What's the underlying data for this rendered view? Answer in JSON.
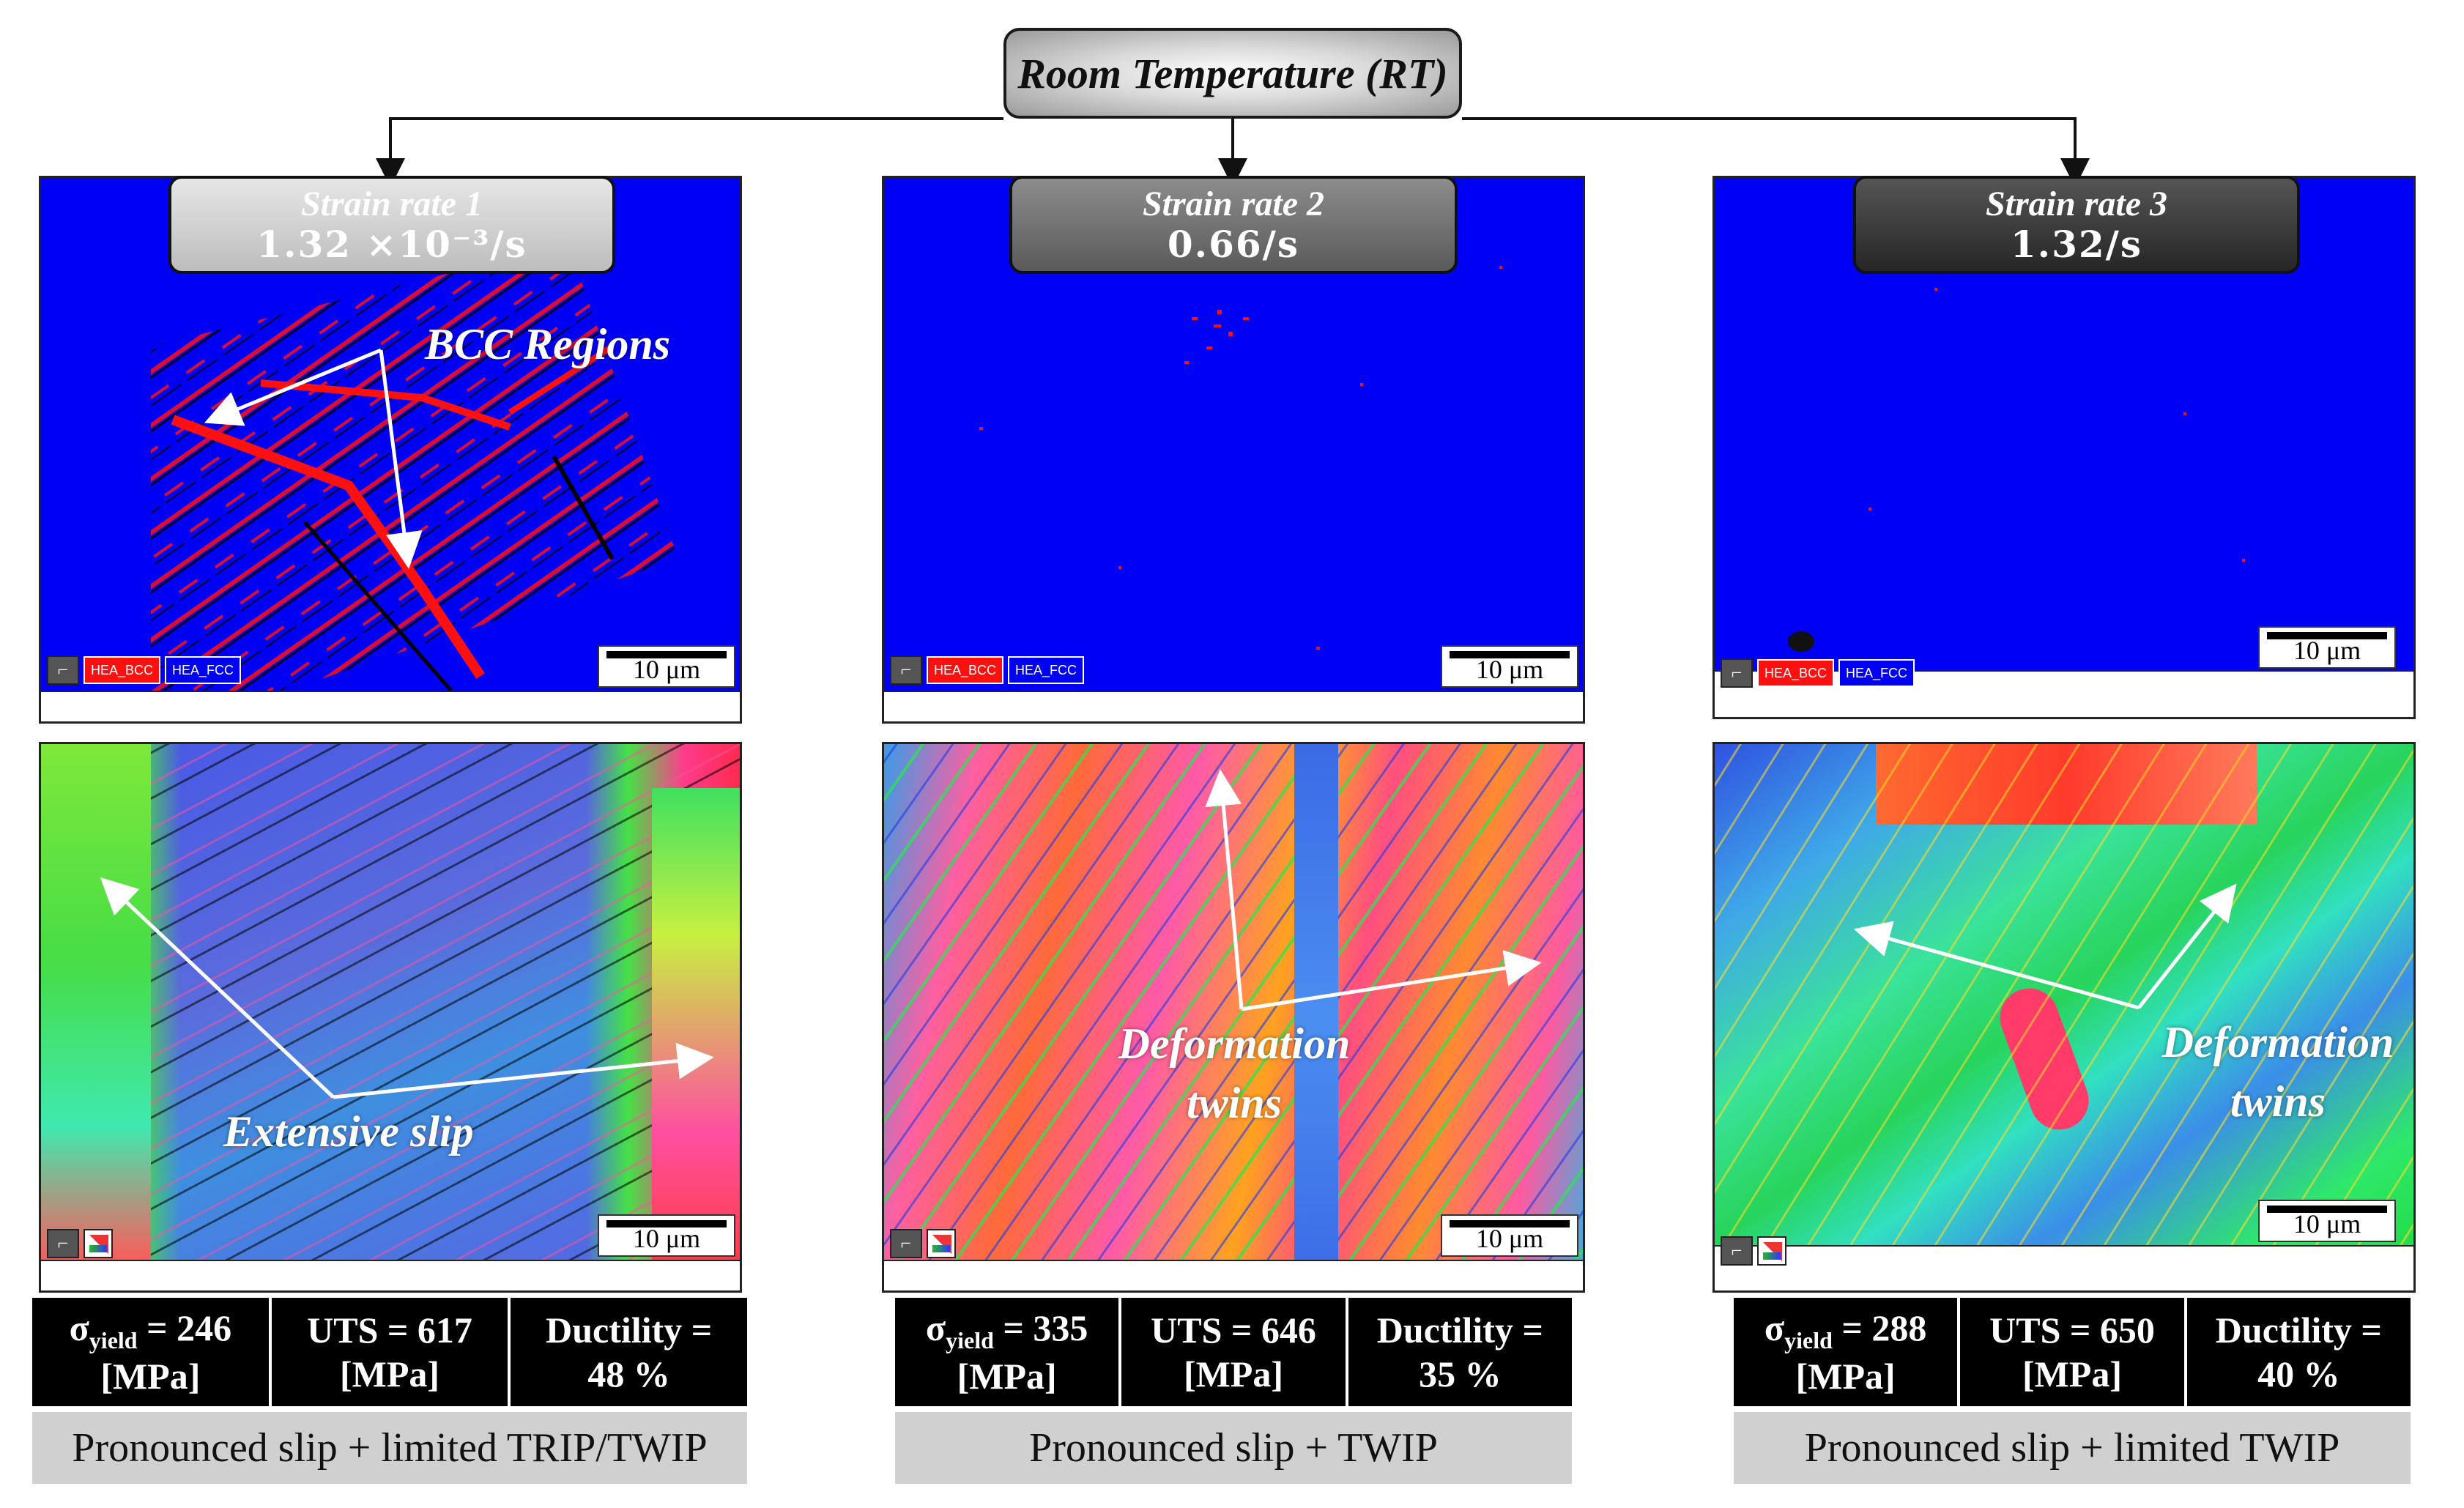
{
  "title": "Room Temperature (RT)",
  "columns": [
    {
      "strain_label": "Strain rate 1",
      "strain_value": "1.32 ×10⁻³/s",
      "box_color": "#cfcfcf",
      "phase_map": {
        "scale": "10 μm",
        "legend": [
          "HEA_BCC",
          "HEA_FCC"
        ],
        "annotation": "BCC Regions",
        "bcc_fraction": 0.12
      },
      "ipf_map": {
        "scale": "10 μm",
        "annotation": "Extensive slip"
      },
      "props": [
        {
          "label": "σ",
          "sub": "yield",
          "value": " = 246",
          "unit": "[MPa]"
        },
        {
          "label": "UTS = 617",
          "sub": "",
          "value": "",
          "unit": "[MPa]"
        },
        {
          "label": "Ductility =",
          "sub": "",
          "value": "",
          "unit": "48 %"
        }
      ],
      "mechanism": "Pronounced slip + limited TRIP/TWIP"
    },
    {
      "strain_label": "Strain rate 2",
      "strain_value": "0.66/s",
      "box_color": "#6e6e6e",
      "phase_map": {
        "scale": "10 μm",
        "legend": [
          "HEA_BCC",
          "HEA_FCC"
        ],
        "annotation": "",
        "bcc_fraction": 0.01
      },
      "ipf_map": {
        "scale": "10 μm",
        "annotation": "Deformation twins"
      },
      "props": [
        {
          "label": "σ",
          "sub": "yield",
          "value": " = 335",
          "unit": "[MPa]"
        },
        {
          "label": "UTS = 646",
          "sub": "",
          "value": "",
          "unit": "[MPa]"
        },
        {
          "label": "Ductility =",
          "sub": "",
          "value": "",
          "unit": "35 %"
        }
      ],
      "mechanism": "Pronounced slip + TWIP"
    },
    {
      "strain_label": "Strain rate 3",
      "strain_value": "1.32/s",
      "box_color": "#333333",
      "phase_map": {
        "scale": "10 μm",
        "legend": [
          "HEA_BCC",
          "HEA_FCC"
        ],
        "annotation": "",
        "bcc_fraction": 0.002
      },
      "ipf_map": {
        "scale": "10 μm",
        "annotation": "Deformation twins"
      },
      "props": [
        {
          "label": "σ",
          "sub": "yield",
          "value": " = 288",
          "unit": "[MPa]"
        },
        {
          "label": "UTS = 650",
          "sub": "",
          "value": "",
          "unit": "[MPa]"
        },
        {
          "label": "Ductility =",
          "sub": "",
          "value": "",
          "unit": "40 %"
        }
      ],
      "mechanism": "Pronounced slip + limited TWIP"
    }
  ],
  "colors": {
    "fcc": "#0000f5",
    "bcc": "#ff1010",
    "mechanism_bg": "#d0d0d0",
    "props_bg": "#000000"
  }
}
